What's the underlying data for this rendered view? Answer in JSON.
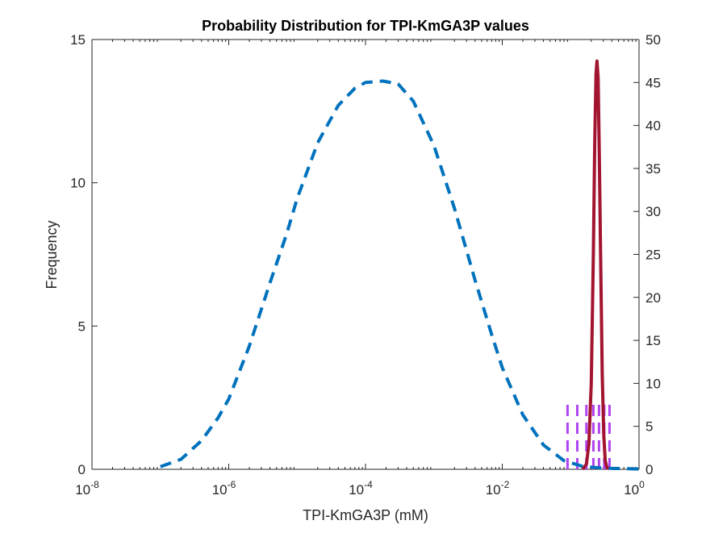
{
  "chart_data": {
    "type": "line",
    "title": "Probability Distribution for TPI-KmGA3P values",
    "xlabel": "TPI-KmGA3P (mM)",
    "ylabel": "Frequency",
    "xscale": "log",
    "xlim": [
      1e-08,
      1
    ],
    "ylim_left": [
      0,
      15
    ],
    "ylim_right": [
      0,
      50
    ],
    "x_ticks": [
      {
        "value": 1e-08,
        "base": "10",
        "exp": "-8"
      },
      {
        "value": 1e-06,
        "base": "10",
        "exp": "-6"
      },
      {
        "value": 0.0001,
        "base": "10",
        "exp": "-4"
      },
      {
        "value": 0.01,
        "base": "10",
        "exp": "-2"
      },
      {
        "value": 1,
        "base": "10",
        "exp": "0"
      }
    ],
    "y_ticks_left": [
      {
        "value": 0,
        "label": "0"
      },
      {
        "value": 5,
        "label": "5"
      },
      {
        "value": 10,
        "label": "10"
      },
      {
        "value": 15,
        "label": "15"
      }
    ],
    "y_ticks_right": [
      {
        "value": 0,
        "label": "0"
      },
      {
        "value": 5,
        "label": "5"
      },
      {
        "value": 10,
        "label": "10"
      },
      {
        "value": 15,
        "label": "15"
      },
      {
        "value": 20,
        "label": "20"
      },
      {
        "value": 25,
        "label": "25"
      },
      {
        "value": 30,
        "label": "30"
      },
      {
        "value": 35,
        "label": "35"
      },
      {
        "value": 40,
        "label": "40"
      },
      {
        "value": 45,
        "label": "45"
      },
      {
        "value": 50,
        "label": "50"
      }
    ],
    "grid": false,
    "series": [
      {
        "axis": "left",
        "style": "dashed",
        "color": "#0072BD",
        "points": [
          [
            1e-07,
            0.09
          ],
          [
            2e-07,
            0.35
          ],
          [
            4e-07,
            1.0
          ],
          [
            7e-07,
            1.8
          ],
          [
            1e-06,
            2.45
          ],
          [
            2e-06,
            4.3
          ],
          [
            4e-06,
            6.5
          ],
          [
            7e-06,
            8.2
          ],
          [
            1e-05,
            9.45
          ],
          [
            2e-05,
            11.4
          ],
          [
            4e-05,
            12.7
          ],
          [
            7e-05,
            13.3
          ],
          [
            0.0001,
            13.5
          ],
          [
            0.00018,
            13.55
          ],
          [
            0.0003,
            13.45
          ],
          [
            0.0005,
            12.85
          ],
          [
            0.001,
            11.3
          ],
          [
            0.002,
            9.1
          ],
          [
            0.004,
            6.6
          ],
          [
            0.007,
            4.7
          ],
          [
            0.01,
            3.55
          ],
          [
            0.02,
            1.9
          ],
          [
            0.04,
            0.85
          ],
          [
            0.08,
            0.3
          ],
          [
            0.15,
            0.1
          ],
          [
            0.3,
            0.04
          ],
          [
            1.0,
            0.01
          ]
        ]
      },
      {
        "axis": "right",
        "style": "solid",
        "color": "#A2142F",
        "points": [
          [
            0.15,
            0.0
          ],
          [
            0.17,
            0.6
          ],
          [
            0.185,
            3.0
          ],
          [
            0.2,
            10.0
          ],
          [
            0.215,
            25.0
          ],
          [
            0.225,
            38.0
          ],
          [
            0.235,
            46.0
          ],
          [
            0.243,
            47.5
          ],
          [
            0.252,
            45.5
          ],
          [
            0.262,
            37.0
          ],
          [
            0.275,
            24.0
          ],
          [
            0.29,
            11.0
          ],
          [
            0.305,
            4.0
          ],
          [
            0.32,
            1.0
          ],
          [
            0.345,
            0.0
          ]
        ]
      }
    ],
    "vlines": {
      "axis": "right",
      "style": "dashed",
      "color": "#B145F0",
      "y_range": [
        0,
        8
      ],
      "x": [
        0.09,
        0.125,
        0.17,
        0.215,
        0.26,
        0.31,
        0.37
      ]
    }
  }
}
